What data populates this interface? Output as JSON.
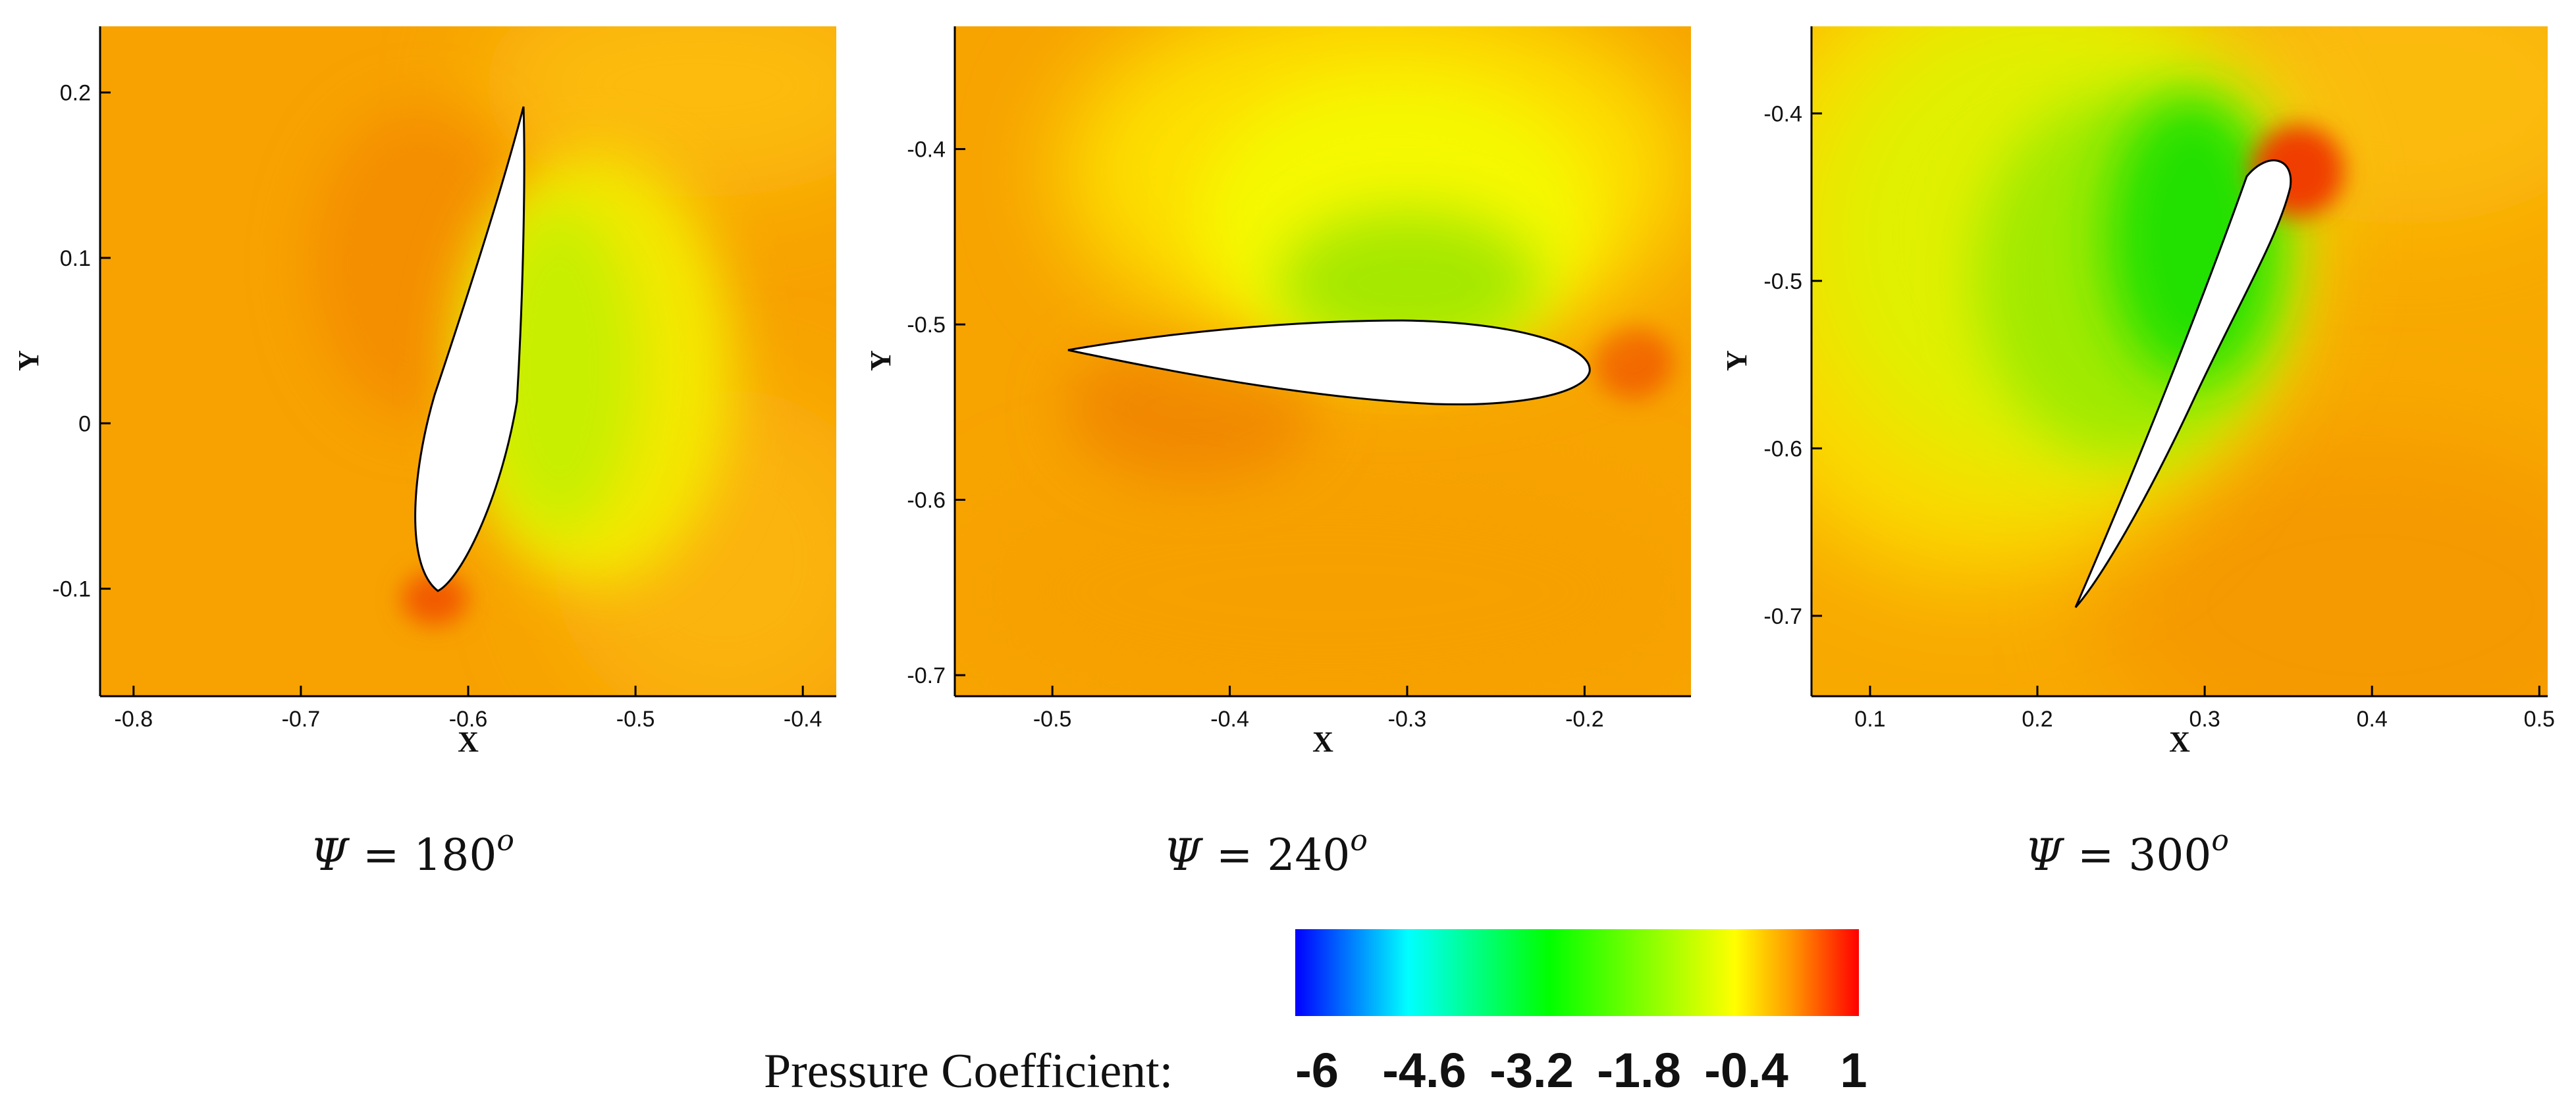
{
  "chart_data": [
    {
      "type": "contour",
      "title": "",
      "xlabel": "X",
      "ylabel": "Y",
      "xlim": [
        -0.82,
        -0.38
      ],
      "ylim": [
        -0.165,
        0.24
      ],
      "xticks": [
        -0.8,
        -0.7,
        -0.6,
        -0.5,
        -0.4
      ],
      "yticks": [
        -0.1,
        0,
        0.1,
        0.2
      ],
      "caption_symbol": "Ψ",
      "caption_eq": "=",
      "caption_value": "180",
      "caption_sup": "o",
      "airfoil": {
        "leading_edge": [
          -0.615,
          -0.102
        ],
        "trailing_edge": [
          -0.567,
          0.19
        ],
        "thickness": 0.12
      },
      "suction_side": "right",
      "low_pressure_color": "#c8ef00"
    },
    {
      "type": "contour",
      "title": "",
      "xlabel": "X",
      "ylabel": "Y",
      "xlim": [
        -0.555,
        -0.14
      ],
      "ylim": [
        -0.712,
        -0.33
      ],
      "xticks": [
        -0.5,
        -0.4,
        -0.3,
        -0.2
      ],
      "yticks": [
        -0.7,
        -0.6,
        -0.5,
        -0.4
      ],
      "caption_symbol": "Ψ",
      "caption_eq": "=",
      "caption_value": "240",
      "caption_sup": "o",
      "airfoil": {
        "leading_edge": [
          -0.195,
          -0.524
        ],
        "trailing_edge": [
          -0.493,
          -0.512
        ],
        "thickness": 0.165
      },
      "suction_side": "top",
      "low_pressure_color": "#7ce200"
    },
    {
      "type": "contour",
      "title": "",
      "xlabel": "X",
      "ylabel": "Y",
      "xlim": [
        0.065,
        0.505
      ],
      "ylim": [
        -0.748,
        -0.348
      ],
      "xticks": [
        0.1,
        0.2,
        0.3,
        0.4,
        0.5
      ],
      "yticks": [
        -0.7,
        -0.6,
        -0.5,
        -0.4
      ],
      "caption_symbol": "Ψ",
      "caption_eq": "=",
      "caption_value": "300",
      "caption_sup": "o",
      "airfoil": {
        "leading_edge": [
          0.34,
          -0.424
        ],
        "trailing_edge": [
          0.221,
          -0.695
        ],
        "thickness": 0.165
      },
      "suction_side": "upper-left",
      "low_pressure_color": "#22e000"
    }
  ],
  "colorbar": {
    "title": "Pressure Coefficient:",
    "ticks": [
      "-6",
      "-4.6",
      "-3.2",
      "-1.8",
      "-0.4",
      "1"
    ],
    "range": [
      -6,
      1
    ],
    "colors": [
      "#0000ff",
      "#00ffff",
      "#00ff00",
      "#ffff00",
      "#ff8000",
      "#ff0000"
    ]
  }
}
